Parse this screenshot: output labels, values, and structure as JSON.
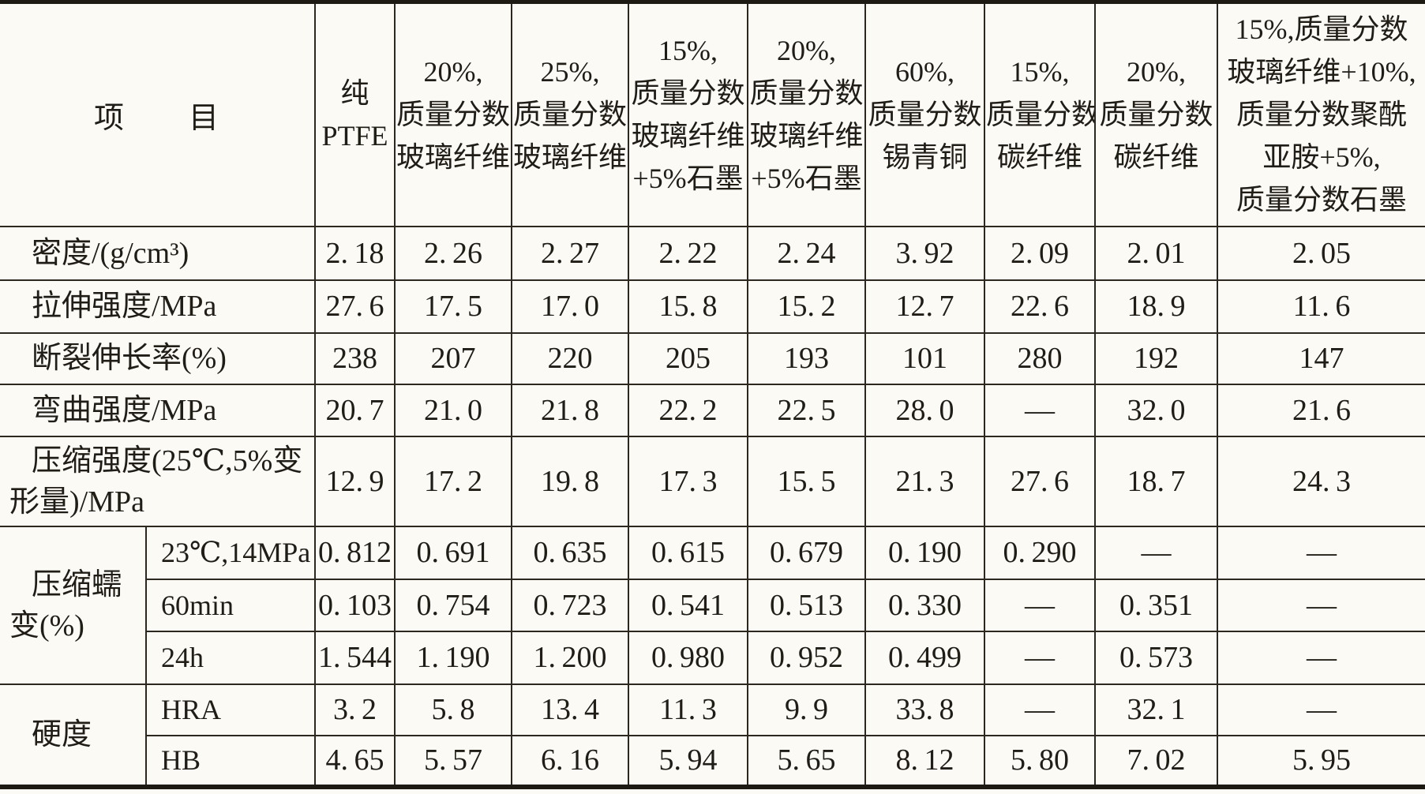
{
  "table": {
    "corner_header": "项　　目",
    "columns": [
      "纯\nPTFE",
      "20%,\n质量分数\n玻璃纤维",
      "25%,\n质量分数\n玻璃纤维",
      "15%,\n质量分数\n玻璃纤维\n+5%石墨",
      "20%,\n质量分数\n玻璃纤维\n+5%石墨",
      "60%,\n质量分数\n锡青铜",
      "15%,\n质量分数\n碳纤维",
      "20%,\n质量分数\n碳纤维",
      "15%,质量分数\n玻璃纤维+10%,\n质量分数聚酰\n亚胺+5%,\n质量分数石墨"
    ],
    "rows": [
      {
        "label": "密度/(g/cm³)",
        "values": [
          "2.18",
          "2.26",
          "2.27",
          "2.22",
          "2.24",
          "3.92",
          "2.09",
          "2.01",
          "2.05"
        ]
      },
      {
        "label": "拉伸强度/MPa",
        "values": [
          "27.6",
          "17.5",
          "17.0",
          "15.8",
          "15.2",
          "12.7",
          "22.6",
          "18.9",
          "11.6"
        ]
      },
      {
        "label": "断裂伸长率(%)",
        "values": [
          "238",
          "207",
          "220",
          "205",
          "193",
          "101",
          "280",
          "192",
          "147"
        ]
      },
      {
        "label": "弯曲强度/MPa",
        "values": [
          "20.7",
          "21.0",
          "21.8",
          "22.2",
          "22.5",
          "28.0",
          "—",
          "32.0",
          "21.6"
        ]
      },
      {
        "label": "压缩强度(25℃,5%变\n形量)/MPa",
        "values": [
          "12.9",
          "17.2",
          "19.8",
          "17.3",
          "15.5",
          "21.3",
          "27.6",
          "18.7",
          "24.3"
        ]
      }
    ],
    "groups": [
      {
        "label": "压缩蠕\n变(%)",
        "rows": [
          {
            "sublabel": "23℃,14MPa",
            "values": [
              "0.812",
              "0.691",
              "0.635",
              "0.615",
              "0.679",
              "0.190",
              "0.290",
              "—",
              "—"
            ]
          },
          {
            "sublabel": "60min",
            "values": [
              "0.103",
              "0.754",
              "0.723",
              "0.541",
              "0.513",
              "0.330",
              "—",
              "0.351",
              "—"
            ]
          },
          {
            "sublabel": "24h",
            "values": [
              "1.544",
              "1.190",
              "1.200",
              "0.980",
              "0.952",
              "0.499",
              "—",
              "0.573",
              "—"
            ]
          }
        ]
      },
      {
        "label": "硬度",
        "rows": [
          {
            "sublabel": "HRA",
            "values": [
              "3.2",
              "5.8",
              "13.4",
              "11.3",
              "9.9",
              "33.8",
              "—",
              "32.1",
              "—"
            ]
          },
          {
            "sublabel": "HB",
            "values": [
              "4.65",
              "5.57",
              "6.16",
              "5.94",
              "5.65",
              "8.12",
              "5.80",
              "7.02",
              "5.95"
            ]
          }
        ]
      }
    ]
  },
  "colors": {
    "paper": "#fbfaf5",
    "ink": "#201d17",
    "grid_line": "#2c2820",
    "heavy_rule": "#1d1913"
  }
}
